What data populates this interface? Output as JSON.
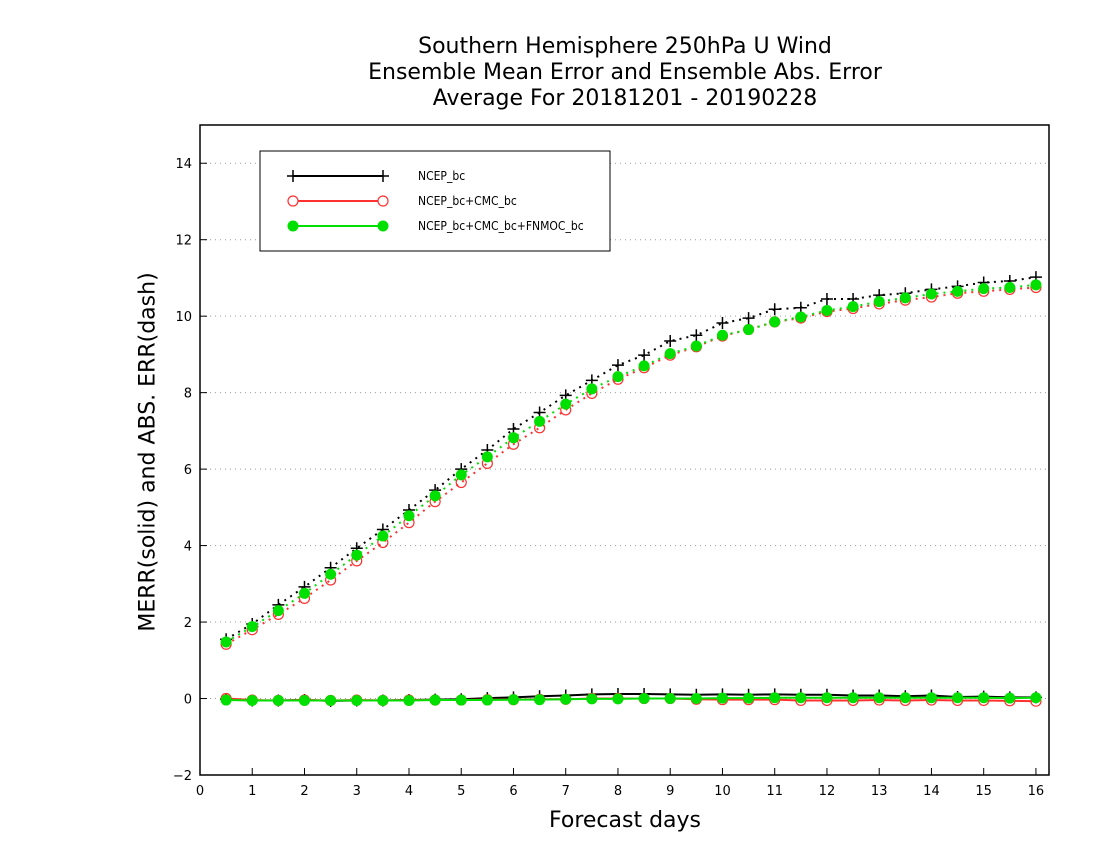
{
  "title": {
    "line1": "Southern Hemisphere 250hPa U Wind",
    "line2": "Ensemble Mean Error and Ensemble Abs. Error",
    "line3": "Average For 20181201 - 20190228"
  },
  "chart_data": {
    "type": "line",
    "xlabel": "Forecast days",
    "ylabel": "MERR(solid) and ABS. ERR(dash)",
    "xlim": [
      0,
      16.25
    ],
    "ylim": [
      -2,
      15
    ],
    "xticks": [
      "0",
      "1",
      "2",
      "3",
      "4",
      "5",
      "6",
      "7",
      "8",
      "9",
      "10",
      "11",
      "12",
      "13",
      "14",
      "15",
      "16"
    ],
    "yticks": [
      "-2",
      "0",
      "2",
      "4",
      "6",
      "8",
      "10",
      "12",
      "14"
    ],
    "grid": true,
    "legend_placement": "top-left",
    "x": [
      0.5,
      1,
      1.5,
      2,
      2.5,
      3,
      3.5,
      4,
      4.5,
      5,
      5.5,
      6,
      6.5,
      7,
      7.5,
      8,
      8.5,
      9,
      9.5,
      10,
      10.5,
      11,
      11.5,
      12,
      12.5,
      13,
      13.5,
      14,
      14.5,
      15,
      15.5,
      16
    ],
    "series": [
      {
        "name": "NCEP_bc",
        "color": "#000000",
        "marker": "plus",
        "merr": [
          -0.02,
          -0.05,
          -0.05,
          -0.04,
          -0.06,
          -0.05,
          -0.05,
          -0.04,
          -0.03,
          -0.02,
          0.01,
          0.03,
          0.06,
          0.08,
          0.11,
          0.12,
          0.12,
          0.11,
          0.1,
          0.11,
          0.1,
          0.11,
          0.1,
          0.1,
          0.08,
          0.08,
          0.06,
          0.08,
          0.04,
          0.05,
          0.03,
          0.03
        ],
        "abs_err": [
          1.55,
          1.95,
          2.45,
          2.92,
          3.42,
          3.93,
          4.42,
          4.93,
          5.45,
          6.0,
          6.5,
          7.05,
          7.48,
          7.93,
          8.32,
          8.72,
          8.98,
          9.35,
          9.5,
          9.82,
          9.95,
          10.18,
          10.22,
          10.45,
          10.45,
          10.55,
          10.6,
          10.7,
          10.78,
          10.88,
          10.92,
          11.02
        ]
      },
      {
        "name": "NCEP_bc+CMC_bc",
        "color": "#ff3030",
        "marker": "open-circle",
        "merr": [
          0.0,
          -0.04,
          -0.05,
          -0.04,
          -0.05,
          -0.04,
          -0.05,
          -0.04,
          -0.04,
          -0.04,
          -0.03,
          -0.03,
          -0.02,
          -0.02,
          0.0,
          0.0,
          0.0,
          0.0,
          -0.02,
          -0.03,
          -0.03,
          -0.03,
          -0.05,
          -0.05,
          -0.05,
          -0.04,
          -0.05,
          -0.04,
          -0.05,
          -0.05,
          -0.06,
          -0.07
        ],
        "abs_err": [
          1.42,
          1.8,
          2.2,
          2.62,
          3.1,
          3.6,
          4.08,
          4.6,
          5.15,
          5.65,
          6.15,
          6.65,
          7.08,
          7.55,
          7.98,
          8.35,
          8.65,
          8.98,
          9.2,
          9.48,
          9.65,
          9.85,
          9.95,
          10.12,
          10.2,
          10.32,
          10.42,
          10.5,
          10.6,
          10.65,
          10.7,
          10.75
        ]
      },
      {
        "name": "NCEP_bc+CMC_bc+FNMOC_bc",
        "color": "#00e000",
        "marker": "filled-circle",
        "merr": [
          -0.04,
          -0.05,
          -0.05,
          -0.05,
          -0.05,
          -0.05,
          -0.05,
          -0.05,
          -0.04,
          -0.04,
          -0.04,
          -0.03,
          -0.03,
          -0.02,
          -0.01,
          -0.01,
          0.0,
          0.0,
          0.0,
          0.01,
          0.01,
          0.02,
          0.02,
          0.02,
          0.02,
          0.02,
          0.02,
          0.02,
          0.02,
          0.02,
          0.01,
          0.02
        ],
        "abs_err": [
          1.48,
          1.88,
          2.3,
          2.75,
          3.25,
          3.75,
          4.25,
          4.78,
          5.3,
          5.85,
          6.32,
          6.82,
          7.25,
          7.7,
          8.1,
          8.42,
          8.7,
          9.02,
          9.22,
          9.5,
          9.65,
          9.85,
          9.98,
          10.15,
          10.25,
          10.38,
          10.48,
          10.58,
          10.65,
          10.72,
          10.75,
          10.82
        ]
      }
    ]
  }
}
